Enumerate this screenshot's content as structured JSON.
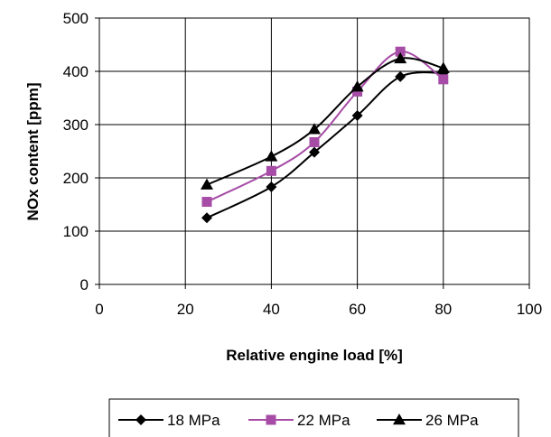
{
  "chart_data": {
    "type": "line",
    "xlabel": "Relative engine load [%]",
    "ylabel": "NOx content [ppm]",
    "xlim": [
      0,
      100
    ],
    "ylim": [
      0,
      500
    ],
    "xticks": [
      0,
      20,
      40,
      60,
      80,
      100
    ],
    "yticks": [
      0,
      100,
      200,
      300,
      400,
      500
    ],
    "grid": "vertical and horizontal",
    "legend_position": "bottom",
    "smooth": true,
    "series": [
      {
        "name": "18 MPa",
        "color": "#000000",
        "marker": "diamond",
        "x": [
          25,
          40,
          50,
          60,
          70,
          80
        ],
        "y": [
          125,
          183,
          248,
          317,
          390,
          397
        ]
      },
      {
        "name": "22 MPa",
        "color": "#a64ca6",
        "marker": "square",
        "x": [
          25,
          40,
          50,
          60,
          70,
          80
        ],
        "y": [
          155,
          213,
          267,
          362,
          437,
          385
        ]
      },
      {
        "name": "26 MPa",
        "color": "#000000",
        "marker": "triangle",
        "x": [
          25,
          40,
          50,
          60,
          70,
          80
        ],
        "y": [
          187,
          240,
          291,
          371,
          424,
          406
        ]
      }
    ]
  }
}
